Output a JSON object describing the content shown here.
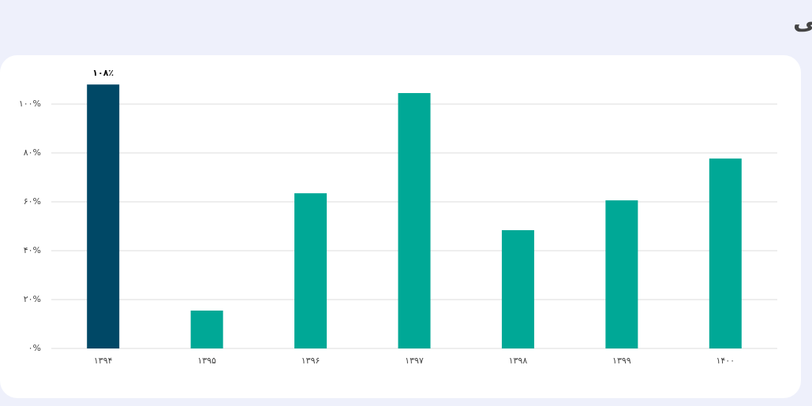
{
  "chart_data": {
    "type": "bar",
    "title": "روند سود تقسیمی",
    "categories": [
      "۱۳۹۴",
      "۱۳۹۵",
      "۱۳۹۶",
      "۱۳۹۷",
      "۱۳۹۸",
      "۱۳۹۹",
      "۱۴۰۰"
    ],
    "values": [
      108,
      15.5,
      63.5,
      104.5,
      48.4,
      60.6,
      77.7
    ],
    "value_labels": [
      "۱۰۸٪",
      null,
      null,
      null,
      null,
      null,
      null
    ],
    "colors": [
      "#004866",
      "#00a896",
      "#00a896",
      "#00a896",
      "#00a896",
      "#00a896",
      "#00a896"
    ],
    "ylim": [
      0,
      110
    ],
    "yticks": [
      {
        "value": 0,
        "label": "۰%"
      },
      {
        "value": 20,
        "label": "۲۰%"
      },
      {
        "value": 40,
        "label": "۴۰%"
      },
      {
        "value": 60,
        "label": "۶۰%"
      },
      {
        "value": 80,
        "label": "۸۰%"
      },
      {
        "value": 100,
        "label": "۱۰۰%"
      }
    ],
    "grid": true
  }
}
